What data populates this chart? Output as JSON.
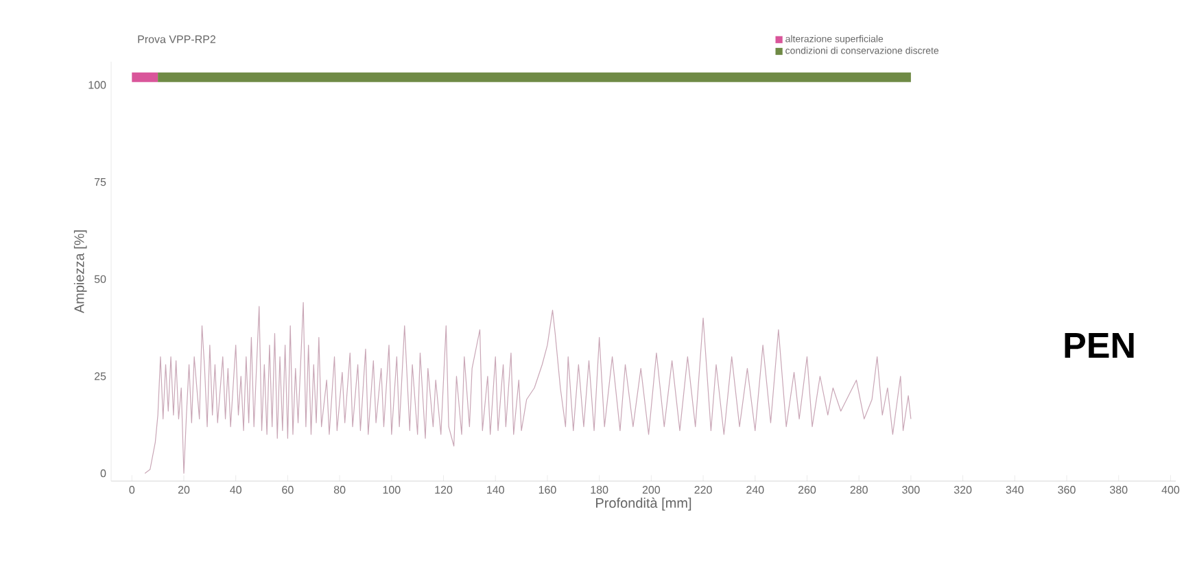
{
  "chart_data": {
    "type": "line",
    "title": "Prova VPP-RP2",
    "xlabel": "Profondità [mm]",
    "ylabel": "Ampiezza [%]",
    "xlim": [
      -8,
      402
    ],
    "ylim": [
      -2,
      106
    ],
    "xticks": [
      0,
      20,
      40,
      60,
      80,
      100,
      120,
      140,
      160,
      180,
      200,
      220,
      240,
      260,
      280,
      300,
      320,
      340,
      360,
      380,
      400
    ],
    "yticks": [
      0,
      25,
      50,
      75,
      100
    ],
    "legend": "top right",
    "grid": false,
    "marker": "none",
    "line_style": "solid",
    "annotations": [
      "PEN"
    ],
    "series": [
      {
        "name": "alterazione superficiale",
        "color": "#d9559a",
        "x": [
          0,
          10
        ],
        "values": [
          102,
          102
        ]
      },
      {
        "name": "condizioni di conservazione discrete",
        "color": "#6f8a45",
        "x": [
          10,
          300
        ],
        "values": [
          102,
          102
        ]
      },
      {
        "color": "#c9a6b6",
        "x": [
          5,
          7,
          9,
          10,
          11,
          12,
          13,
          14,
          15,
          16,
          17,
          18,
          19,
          20,
          21,
          22,
          23,
          24,
          26,
          27,
          28,
          29,
          30,
          31,
          32,
          33,
          35,
          36,
          37,
          38,
          40,
          41,
          42,
          43,
          44,
          45,
          46,
          47,
          49,
          50,
          51,
          52,
          53,
          54,
          55,
          56,
          57,
          58,
          59,
          60,
          61,
          62,
          63,
          64,
          66,
          67,
          68,
          69,
          70,
          71,
          72,
          73,
          75,
          76,
          78,
          79,
          81,
          82,
          84,
          85,
          87,
          88,
          90,
          91,
          93,
          94,
          96,
          97,
          99,
          100,
          102,
          103,
          105,
          107,
          108,
          110,
          111,
          113,
          114,
          116,
          117,
          119,
          121,
          122,
          124,
          125,
          127,
          128,
          130,
          131,
          134,
          135,
          137,
          138,
          140,
          141,
          143,
          144,
          146,
          147,
          149,
          150,
          152,
          155,
          158,
          160,
          162,
          163,
          165,
          167,
          168,
          170,
          172,
          174,
          176,
          178,
          180,
          182,
          185,
          188,
          190,
          193,
          196,
          199,
          202,
          205,
          208,
          211,
          214,
          217,
          220,
          223,
          225,
          228,
          231,
          234,
          237,
          240,
          243,
          246,
          249,
          252,
          255,
          257,
          260,
          262,
          265,
          268,
          270,
          273,
          276,
          279,
          282,
          285,
          287,
          289,
          291,
          293,
          296,
          297,
          299,
          300
        ],
        "values": [
          0,
          1,
          8,
          15,
          30,
          14,
          28,
          16,
          30,
          15,
          29,
          14,
          22,
          0,
          15,
          28,
          13,
          30,
          14,
          38,
          27,
          12,
          33,
          15,
          28,
          13,
          30,
          14,
          27,
          12,
          33,
          15,
          25,
          11,
          30,
          13,
          35,
          12,
          43,
          11,
          28,
          10,
          33,
          12,
          36,
          9,
          30,
          11,
          33,
          9,
          38,
          10,
          27,
          13,
          44,
          12,
          33,
          10,
          28,
          13,
          35,
          12,
          24,
          10,
          30,
          11,
          26,
          13,
          31,
          12,
          28,
          11,
          32,
          10,
          29,
          13,
          27,
          12,
          33,
          10,
          30,
          12,
          38,
          11,
          28,
          10,
          31,
          9,
          27,
          12,
          24,
          10,
          38,
          12,
          7,
          25,
          10,
          30,
          12,
          27,
          37,
          11,
          25,
          10,
          30,
          11,
          28,
          12,
          31,
          10,
          24,
          11,
          19,
          22,
          28,
          33,
          42,
          36,
          22,
          12,
          30,
          11,
          28,
          12,
          29,
          11,
          35,
          12,
          30,
          11,
          28,
          12,
          27,
          10,
          31,
          12,
          29,
          11,
          30,
          12,
          40,
          11,
          28,
          10,
          30,
          12,
          27,
          11,
          33,
          13,
          37,
          12,
          26,
          14,
          30,
          12,
          25,
          15,
          22,
          16,
          20,
          24,
          14,
          19,
          30,
          15,
          22,
          10,
          25,
          11,
          20,
          14
        ]
      }
    ]
  }
}
